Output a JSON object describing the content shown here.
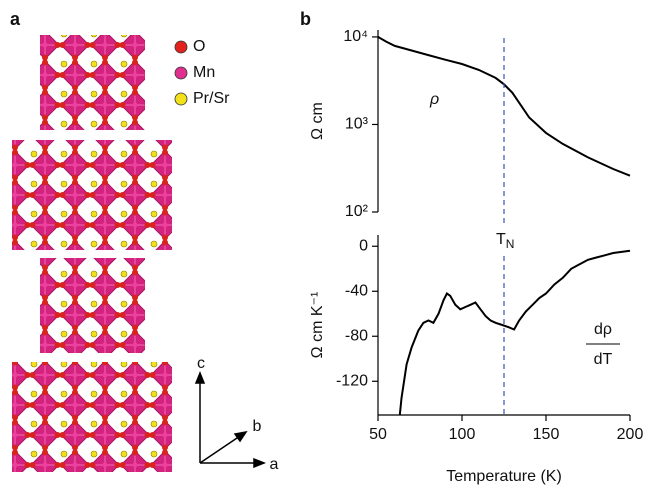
{
  "panel_labels": [
    "a",
    "b"
  ],
  "structure": {
    "legend": [
      {
        "name": "O",
        "color": "#e0231c"
      },
      {
        "name": "Mn",
        "color": "#e0308f"
      },
      {
        "name": "Pr/Sr",
        "color": "#f2e01b"
      }
    ],
    "axes": [
      "c",
      "b",
      "a"
    ]
  },
  "chart_data": [
    {
      "type": "line",
      "ylabel": "Ω cm",
      "annotation": "ρ",
      "log_y": true,
      "xlim": [
        50,
        200
      ],
      "ylim": [
        100,
        12000
      ],
      "yticks": [
        {
          "value": 100,
          "label": "10²"
        },
        {
          "value": 1000,
          "label": "10³"
        },
        {
          "value": 10000,
          "label": "10⁴"
        }
      ],
      "x": [
        50,
        55,
        60,
        70,
        80,
        90,
        100,
        110,
        120,
        125,
        130,
        140,
        150,
        160,
        175,
        190,
        200
      ],
      "series": [
        {
          "color": "#000000",
          "values": [
            10000,
            8800,
            7900,
            7000,
            6200,
            5500,
            4900,
            4200,
            3400,
            2880,
            2300,
            1200,
            800,
            600,
            420,
            310,
            260
          ]
        }
      ]
    },
    {
      "type": "line",
      "xlabel": "Temperature (K)",
      "ylabel": "Ω cm K⁻¹",
      "annotation": {
        "num": "dρ",
        "den": "dT"
      },
      "xlim": [
        50,
        200
      ],
      "ylim": [
        -150,
        10
      ],
      "xticks": [
        50,
        100,
        150,
        200
      ],
      "yticks": [
        0,
        -40,
        -80,
        -120
      ],
      "x": [
        63,
        64,
        67,
        70,
        74,
        77,
        80,
        83,
        86,
        89,
        91,
        93,
        96,
        99,
        102,
        105,
        108,
        111,
        114,
        117,
        120,
        124,
        128,
        131,
        134,
        138,
        142,
        146,
        150,
        155,
        160,
        165,
        170,
        175,
        180,
        185,
        190,
        195,
        200
      ],
      "series": [
        {
          "color": "#000000",
          "values": [
            -150,
            -135,
            -105,
            -90,
            -75,
            -68,
            -66,
            -68,
            -60,
            -48,
            -42,
            -44,
            -52,
            -56,
            -54,
            -52,
            -50,
            -56,
            -62,
            -66,
            -68,
            -70,
            -72,
            -74,
            -66,
            -58,
            -52,
            -46,
            -42,
            -34,
            -28,
            -20,
            -16,
            -12,
            -10,
            -8,
            -6,
            -5,
            -4
          ]
        }
      ]
    }
  ],
  "marker": {
    "x": 125,
    "color": "#3b55b0",
    "label_main": "T",
    "label_sub": "N"
  }
}
